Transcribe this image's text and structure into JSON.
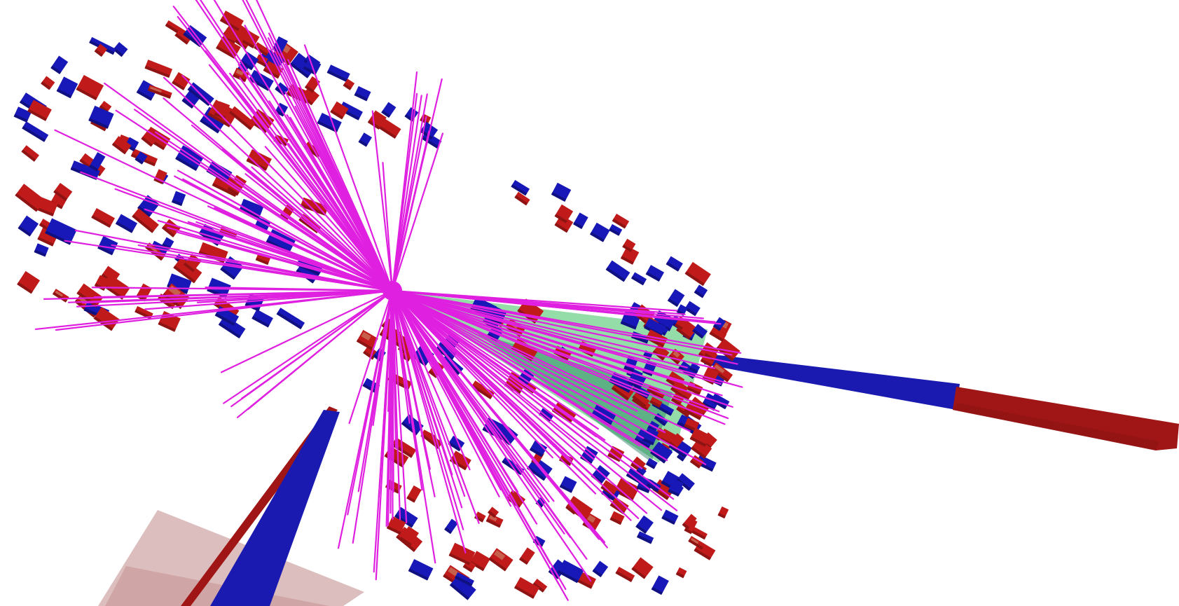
{
  "scene": {
    "kind": "particle-collision-event-display",
    "colors": {
      "background": "#ffffff",
      "track": "#e020e0",
      "em_cell": "#c01a1a",
      "em_cell_dark": "#8e1414",
      "em_cell_light": "#c8705a",
      "hadron_cell": "#1818b8",
      "hadron_cell_dark": "#101080",
      "jet_cone": "#3cc060",
      "jet_cone_dark": "#1d7a5a",
      "beam_blue": "#1a1ab0",
      "beam_red": "#a01616",
      "pink_panel": "#c08888"
    },
    "elements": {
      "tracks": "track-bundle",
      "calorimeter_cells": "calorimeter-towers",
      "jet_cone": "jet-cone",
      "right_beam": "right-energy-bar",
      "lower_beam": "lower-energy-bar",
      "pink_panel": "detector-panel"
    }
  }
}
